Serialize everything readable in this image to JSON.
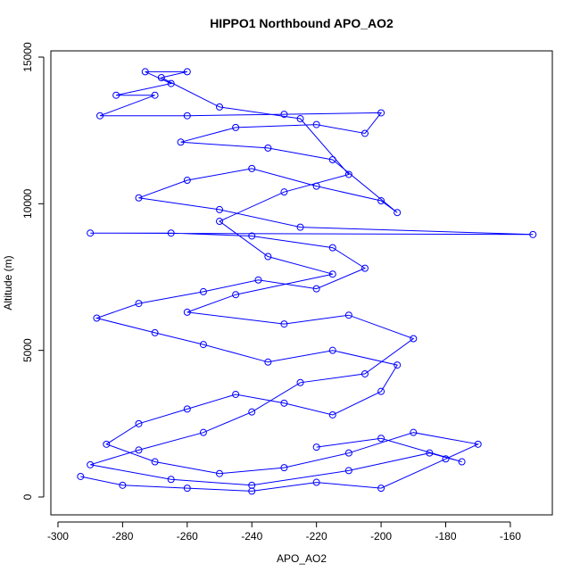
{
  "chart_data": {
    "type": "line",
    "markers": "circle",
    "title": "HIPPO1 Northbound APO_AO2",
    "x_label": "APO_AO2",
    "y_label": "Altitude (m)",
    "xlim": [
      -302.2,
      -147
    ],
    "ylim": [
      -609,
      15213
    ],
    "xticks": [
      -300,
      -280,
      -260,
      -240,
      -220,
      -200,
      -180,
      -160
    ],
    "yticks": [
      0,
      5000,
      10000,
      15000
    ],
    "grid": false,
    "series": [
      {
        "color": "#0000ff",
        "x": [
          -293,
          -280,
          -260,
          -240,
          -220,
          -200,
          -180,
          -170,
          -190,
          -210,
          -230,
          -250,
          -270,
          -285,
          -275,
          -260,
          -245,
          -230,
          -215,
          -200,
          -195,
          -215,
          -235,
          -255,
          -270,
          -288,
          -275,
          -255,
          -238,
          -220,
          -205,
          -215,
          -240,
          -265,
          -290,
          -153,
          -225,
          -250,
          -275,
          -260,
          -240,
          -220,
          -200,
          -195,
          -215,
          -235,
          -262,
          -245,
          -220,
          -205,
          -200,
          -230,
          -260,
          -287,
          -270,
          -282,
          -265,
          -273,
          -260,
          -268,
          -250,
          -225,
          -210,
          -230,
          -250,
          -235,
          -215,
          -245,
          -260,
          -230,
          -210,
          -190,
          -205,
          -225,
          -240,
          -255,
          -275,
          -290,
          -265,
          -240,
          -210,
          -185,
          -175,
          -200,
          -220
        ],
        "values": [
          700,
          400,
          300,
          200,
          500,
          300,
          1300,
          1800,
          2200,
          1500,
          1000,
          800,
          1200,
          1800,
          2500,
          3000,
          3500,
          3200,
          2800,
          3600,
          4500,
          5000,
          4600,
          5200,
          5600,
          6100,
          6600,
          7000,
          7400,
          7100,
          7800,
          8500,
          8900,
          9000,
          9000,
          8950,
          9200,
          9800,
          10200,
          10800,
          11200,
          10600,
          10100,
          9700,
          11500,
          11900,
          12100,
          12600,
          12700,
          12400,
          13100,
          13050,
          13000,
          13000,
          13700,
          13700,
          14100,
          14500,
          14500,
          14300,
          13300,
          12900,
          11000,
          10400,
          9400,
          8200,
          7600,
          6900,
          6300,
          5900,
          6200,
          5400,
          4200,
          3900,
          2900,
          2200,
          1600,
          1100,
          600,
          400,
          900,
          1500,
          1200,
          2000,
          1700
        ]
      }
    ]
  }
}
